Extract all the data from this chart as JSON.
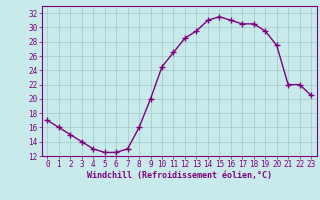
{
  "x": [
    0,
    1,
    2,
    3,
    4,
    5,
    6,
    7,
    8,
    9,
    10,
    11,
    12,
    13,
    14,
    15,
    16,
    17,
    18,
    19,
    20,
    21,
    22,
    23
  ],
  "y": [
    17,
    16,
    15,
    14,
    13,
    12.5,
    12.5,
    13,
    16,
    20,
    24.5,
    26.5,
    28.5,
    29.5,
    31,
    31.5,
    31,
    30.5,
    30.5,
    29.5,
    27.5,
    22,
    22,
    20.5
  ],
  "line_color": "#800080",
  "marker": "+",
  "marker_size": 4,
  "marker_lw": 1.0,
  "line_width": 1.0,
  "background_color": "#c8eaea",
  "grid_color": "#a0c8c8",
  "xlabel": "Windchill (Refroidissement éolien,°C)",
  "xlabel_color": "#800080",
  "tick_color": "#800080",
  "spine_color": "#800080",
  "ylim": [
    12,
    33
  ],
  "xlim": [
    -0.5,
    23.5
  ],
  "yticks": [
    12,
    14,
    16,
    18,
    20,
    22,
    24,
    26,
    28,
    30,
    32
  ],
  "xticks": [
    0,
    1,
    2,
    3,
    4,
    5,
    6,
    7,
    8,
    9,
    10,
    11,
    12,
    13,
    14,
    15,
    16,
    17,
    18,
    19,
    20,
    21,
    22,
    23
  ],
  "tick_fontsize": 5.5,
  "xlabel_fontsize": 6.0,
  "xlabel_fontweight": "bold"
}
